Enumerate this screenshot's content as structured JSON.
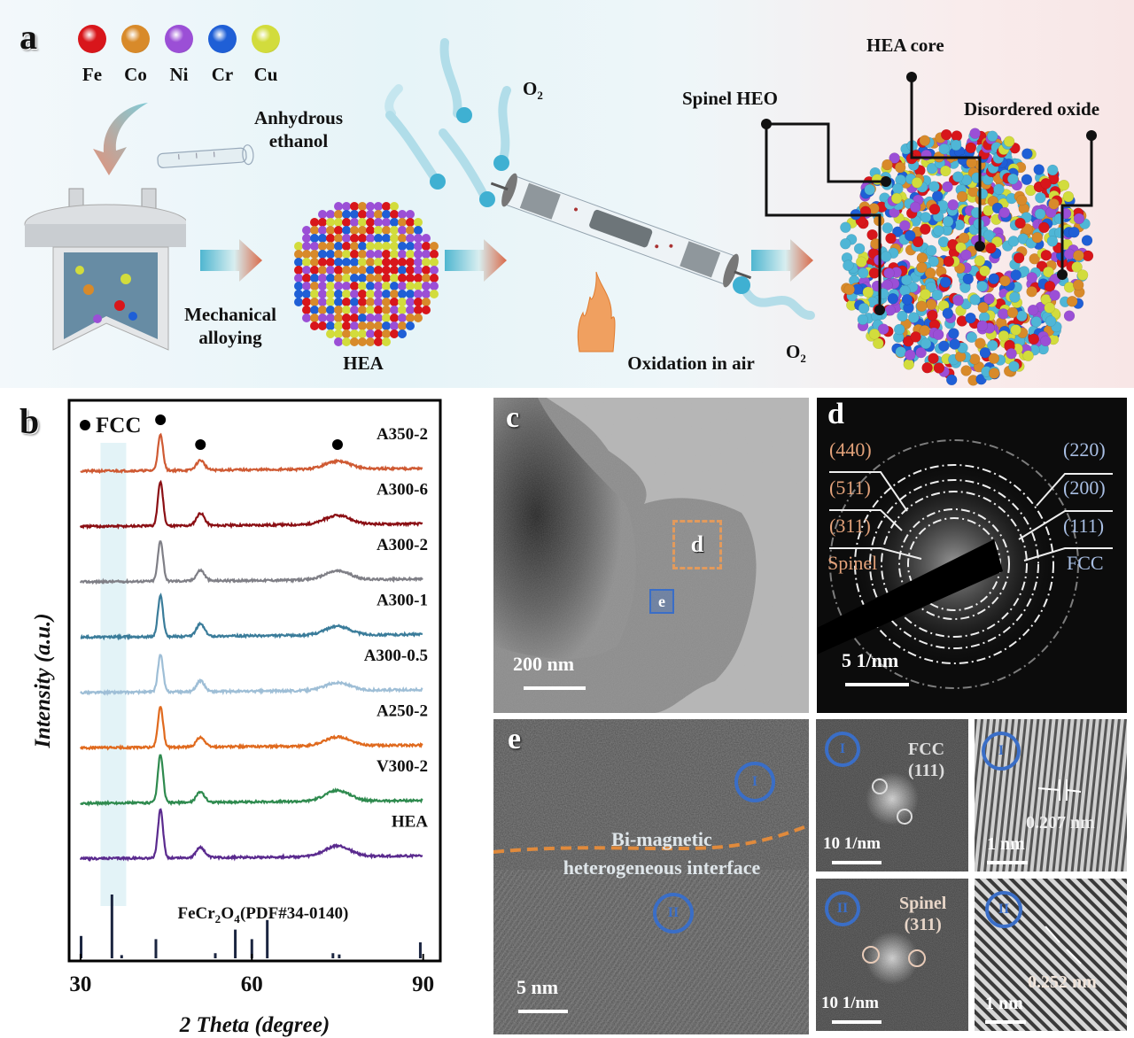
{
  "figure": {
    "panel_labels": [
      "a",
      "b",
      "c",
      "d",
      "e"
    ]
  },
  "panel_a": {
    "elements": [
      {
        "symbol": "Fe",
        "color": "#d8161b"
      },
      {
        "symbol": "Co",
        "color": "#d88a2a"
      },
      {
        "symbol": "Ni",
        "color": "#9b4fd6"
      },
      {
        "symbol": "Cr",
        "color": "#1f5fd6"
      },
      {
        "symbol": "Cu",
        "color": "#d2dc3c"
      }
    ],
    "solvent_label_line1": "Anhydrous",
    "solvent_label_line2": "ethanol",
    "step1_line1": "Mechanical",
    "step1_line2": "alloying",
    "hea_label": "HEA",
    "o2_top": "O",
    "o2_bottom": "O",
    "o2_subscript": "2",
    "step2_label": "Oxidation in air",
    "callouts": {
      "spinel": "Spinel HEO",
      "core": "HEA core",
      "disordered": "Disordered oxide"
    },
    "oxygen_color": "#4fb6d6"
  },
  "chart_data": {
    "type": "line",
    "title": "",
    "panel": "b",
    "xlabel": "2 Theta (degree)",
    "ylabel": "Intensity (a.u.)",
    "xlim": [
      28,
      93
    ],
    "x_ticks": [
      30,
      60,
      90
    ],
    "y_ticks": [],
    "grid": false,
    "legend_marker_label": "FCC",
    "fcc_peak_positions": [
      44,
      51,
      75
    ],
    "highlight_band": [
      33.5,
      38
    ],
    "reference": {
      "label_prefix": "FeCr",
      "label_sub1": "2",
      "label_mid": "O",
      "label_sub2": "4",
      "label_suffix": "(PDF#34-0140)",
      "sticks": [
        {
          "x": 30.1,
          "h": 0.35
        },
        {
          "x": 35.5,
          "h": 1.0
        },
        {
          "x": 37.2,
          "h": 0.05
        },
        {
          "x": 43.2,
          "h": 0.3
        },
        {
          "x": 53.6,
          "h": 0.08
        },
        {
          "x": 57.1,
          "h": 0.45
        },
        {
          "x": 60.0,
          "h": 0.3
        },
        {
          "x": 62.7,
          "h": 0.6
        },
        {
          "x": 74.2,
          "h": 0.08
        },
        {
          "x": 75.3,
          "h": 0.06
        },
        {
          "x": 89.5,
          "h": 0.25
        }
      ]
    },
    "series": [
      {
        "name": "A350-2",
        "color": "#cf5a33",
        "peaks": [
          {
            "x": 44,
            "h": 1.0
          },
          {
            "x": 51,
            "h": 0.28
          },
          {
            "x": 75,
            "h": 0.22
          }
        ]
      },
      {
        "name": "A300-6",
        "color": "#8b0f14",
        "peaks": [
          {
            "x": 44,
            "h": 1.25
          },
          {
            "x": 51,
            "h": 0.35
          },
          {
            "x": 75,
            "h": 0.25
          }
        ]
      },
      {
        "name": "A300-2",
        "color": "#7f7f86",
        "peaks": [
          {
            "x": 44,
            "h": 1.15
          },
          {
            "x": 51,
            "h": 0.3
          },
          {
            "x": 75,
            "h": 0.25
          }
        ]
      },
      {
        "name": "A300-1",
        "color": "#3a7c9a",
        "peaks": [
          {
            "x": 44,
            "h": 1.15
          },
          {
            "x": 51,
            "h": 0.35
          },
          {
            "x": 75,
            "h": 0.25
          }
        ]
      },
      {
        "name": "A300-0.5",
        "color": "#9ebed6",
        "peaks": [
          {
            "x": 44,
            "h": 1.05
          },
          {
            "x": 51,
            "h": 0.3
          },
          {
            "x": 75,
            "h": 0.22
          }
        ]
      },
      {
        "name": "A250-2",
        "color": "#e06a1e",
        "peaks": [
          {
            "x": 44,
            "h": 1.15
          },
          {
            "x": 51,
            "h": 0.28
          },
          {
            "x": 75,
            "h": 0.25
          }
        ]
      },
      {
        "name": "V300-2",
        "color": "#2e8a4e",
        "peaks": [
          {
            "x": 44,
            "h": 1.35
          },
          {
            "x": 51,
            "h": 0.3
          },
          {
            "x": 75,
            "h": 0.3
          }
        ]
      },
      {
        "name": "HEA",
        "color": "#5a2a8e",
        "peaks": [
          {
            "x": 44,
            "h": 1.35
          },
          {
            "x": 51,
            "h": 0.3
          },
          {
            "x": 75,
            "h": 0.3
          }
        ]
      }
    ]
  },
  "panel_c": {
    "scale_bar": "200 nm",
    "roi_d": "d",
    "roi_e": "e"
  },
  "panel_d": {
    "spinel_indices": [
      "(440)",
      "(511)",
      "(311)"
    ],
    "spinel_label": "Spinel",
    "fcc_indices": [
      "(220)",
      "(200)",
      "(111)"
    ],
    "fcc_label": "FCC",
    "scale_bar": "5 1/nm"
  },
  "panel_e": {
    "interface_line1": "Bi-magnetic",
    "interface_line2": "heterogeneous interface",
    "region_1": "I",
    "region_2": "II",
    "scale_bar": "5 nm",
    "fft_1": {
      "region": "I",
      "phase": "FCC",
      "plane": "(111)",
      "scale_bar": "10 1/nm"
    },
    "fft_2": {
      "region": "II",
      "phase": "Spinel",
      "plane": "(311)",
      "scale_bar": "10 1/nm"
    },
    "ifft_1": {
      "region": "I",
      "spacing": "0.207 nm",
      "scale_bar": "1 nm"
    },
    "ifft_2": {
      "region": "II",
      "spacing": "0.252 nm",
      "scale_bar": "1 nm"
    }
  }
}
